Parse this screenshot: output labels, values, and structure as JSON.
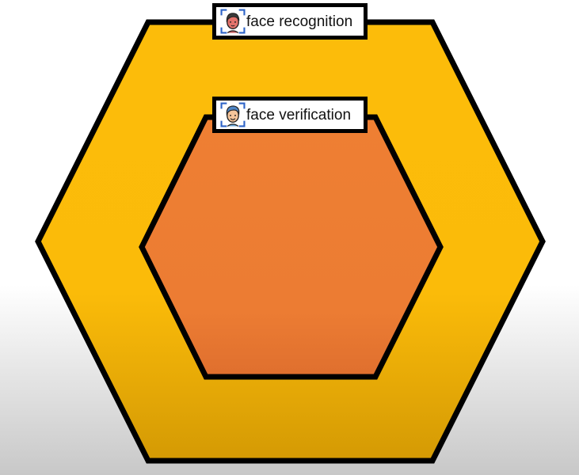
{
  "colors": {
    "background_top": "#ffffff",
    "background_bottom": "#c8c8c8",
    "outer_hexagon_top": "#fcbc0a",
    "outer_hexagon_bottom": "#d49a04",
    "inner_hexagon_top": "#ee7f33",
    "inner_hexagon_bottom": "#e07030",
    "outline": "#000000"
  },
  "outer_layer": {
    "label": "face recognition",
    "icon": "face-recognition-icon"
  },
  "inner_layer": {
    "label": "face verification",
    "icon": "face-verification-icon"
  }
}
